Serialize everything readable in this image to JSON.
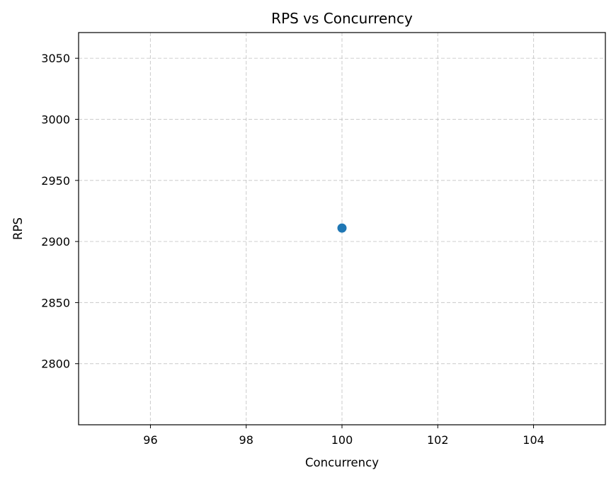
{
  "chart_data": {
    "type": "scatter",
    "title": "RPS vs Concurrency",
    "xlabel": "Concurrency",
    "ylabel": "RPS",
    "xlim": [
      94.5,
      105.5
    ],
    "ylim": [
      2750,
      3071
    ],
    "xticks": [
      96,
      98,
      100,
      102,
      104
    ],
    "yticks": [
      2800,
      2850,
      2900,
      2950,
      3000,
      3050
    ],
    "grid": true,
    "series": [
      {
        "color": "#1f77b4",
        "points": [
          {
            "x": 100,
            "y": 2911
          }
        ]
      }
    ]
  }
}
